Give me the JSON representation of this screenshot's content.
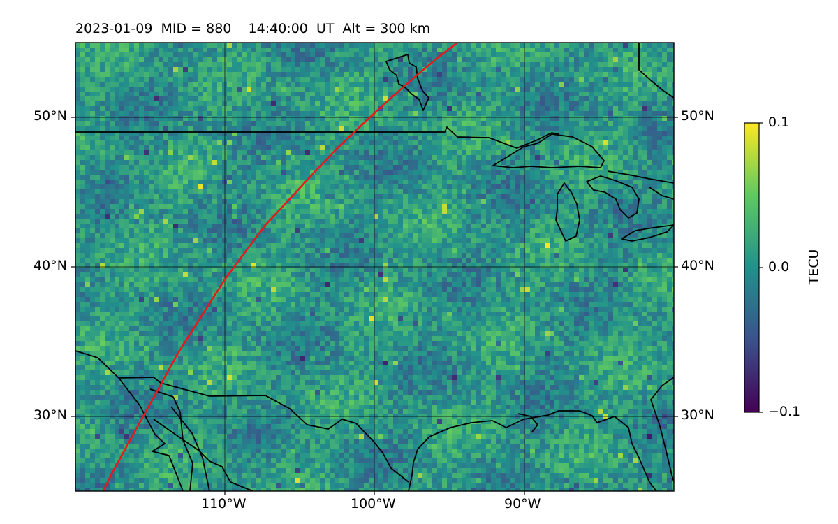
{
  "title": "2023-01-09  MID = 880    14:40:00  UT  Alt = 300 km",
  "map": {
    "projection": "PlateCarree",
    "lon_range": [
      -120,
      -80
    ],
    "lat_range": [
      25,
      55
    ],
    "x_ticks": [
      "110°W",
      "100°W",
      "90°W"
    ],
    "y_ticks_left": [
      "50°N",
      "40°N",
      "30°N"
    ],
    "y_ticks_right": [
      "50°N",
      "40°N",
      "30°N"
    ],
    "gridlines": true,
    "features": [
      "coastlines",
      "country-borders",
      "great-lakes",
      "red-track-curve"
    ]
  },
  "colorbar": {
    "label": "TECU",
    "ticks": [
      "0.1",
      "0.0",
      "−0.1"
    ],
    "range": [
      -0.1,
      0.1
    ],
    "colormap": "viridis"
  },
  "colors": {
    "track": "#e31a1c",
    "grid": "#000000",
    "outline": "#000000"
  }
}
